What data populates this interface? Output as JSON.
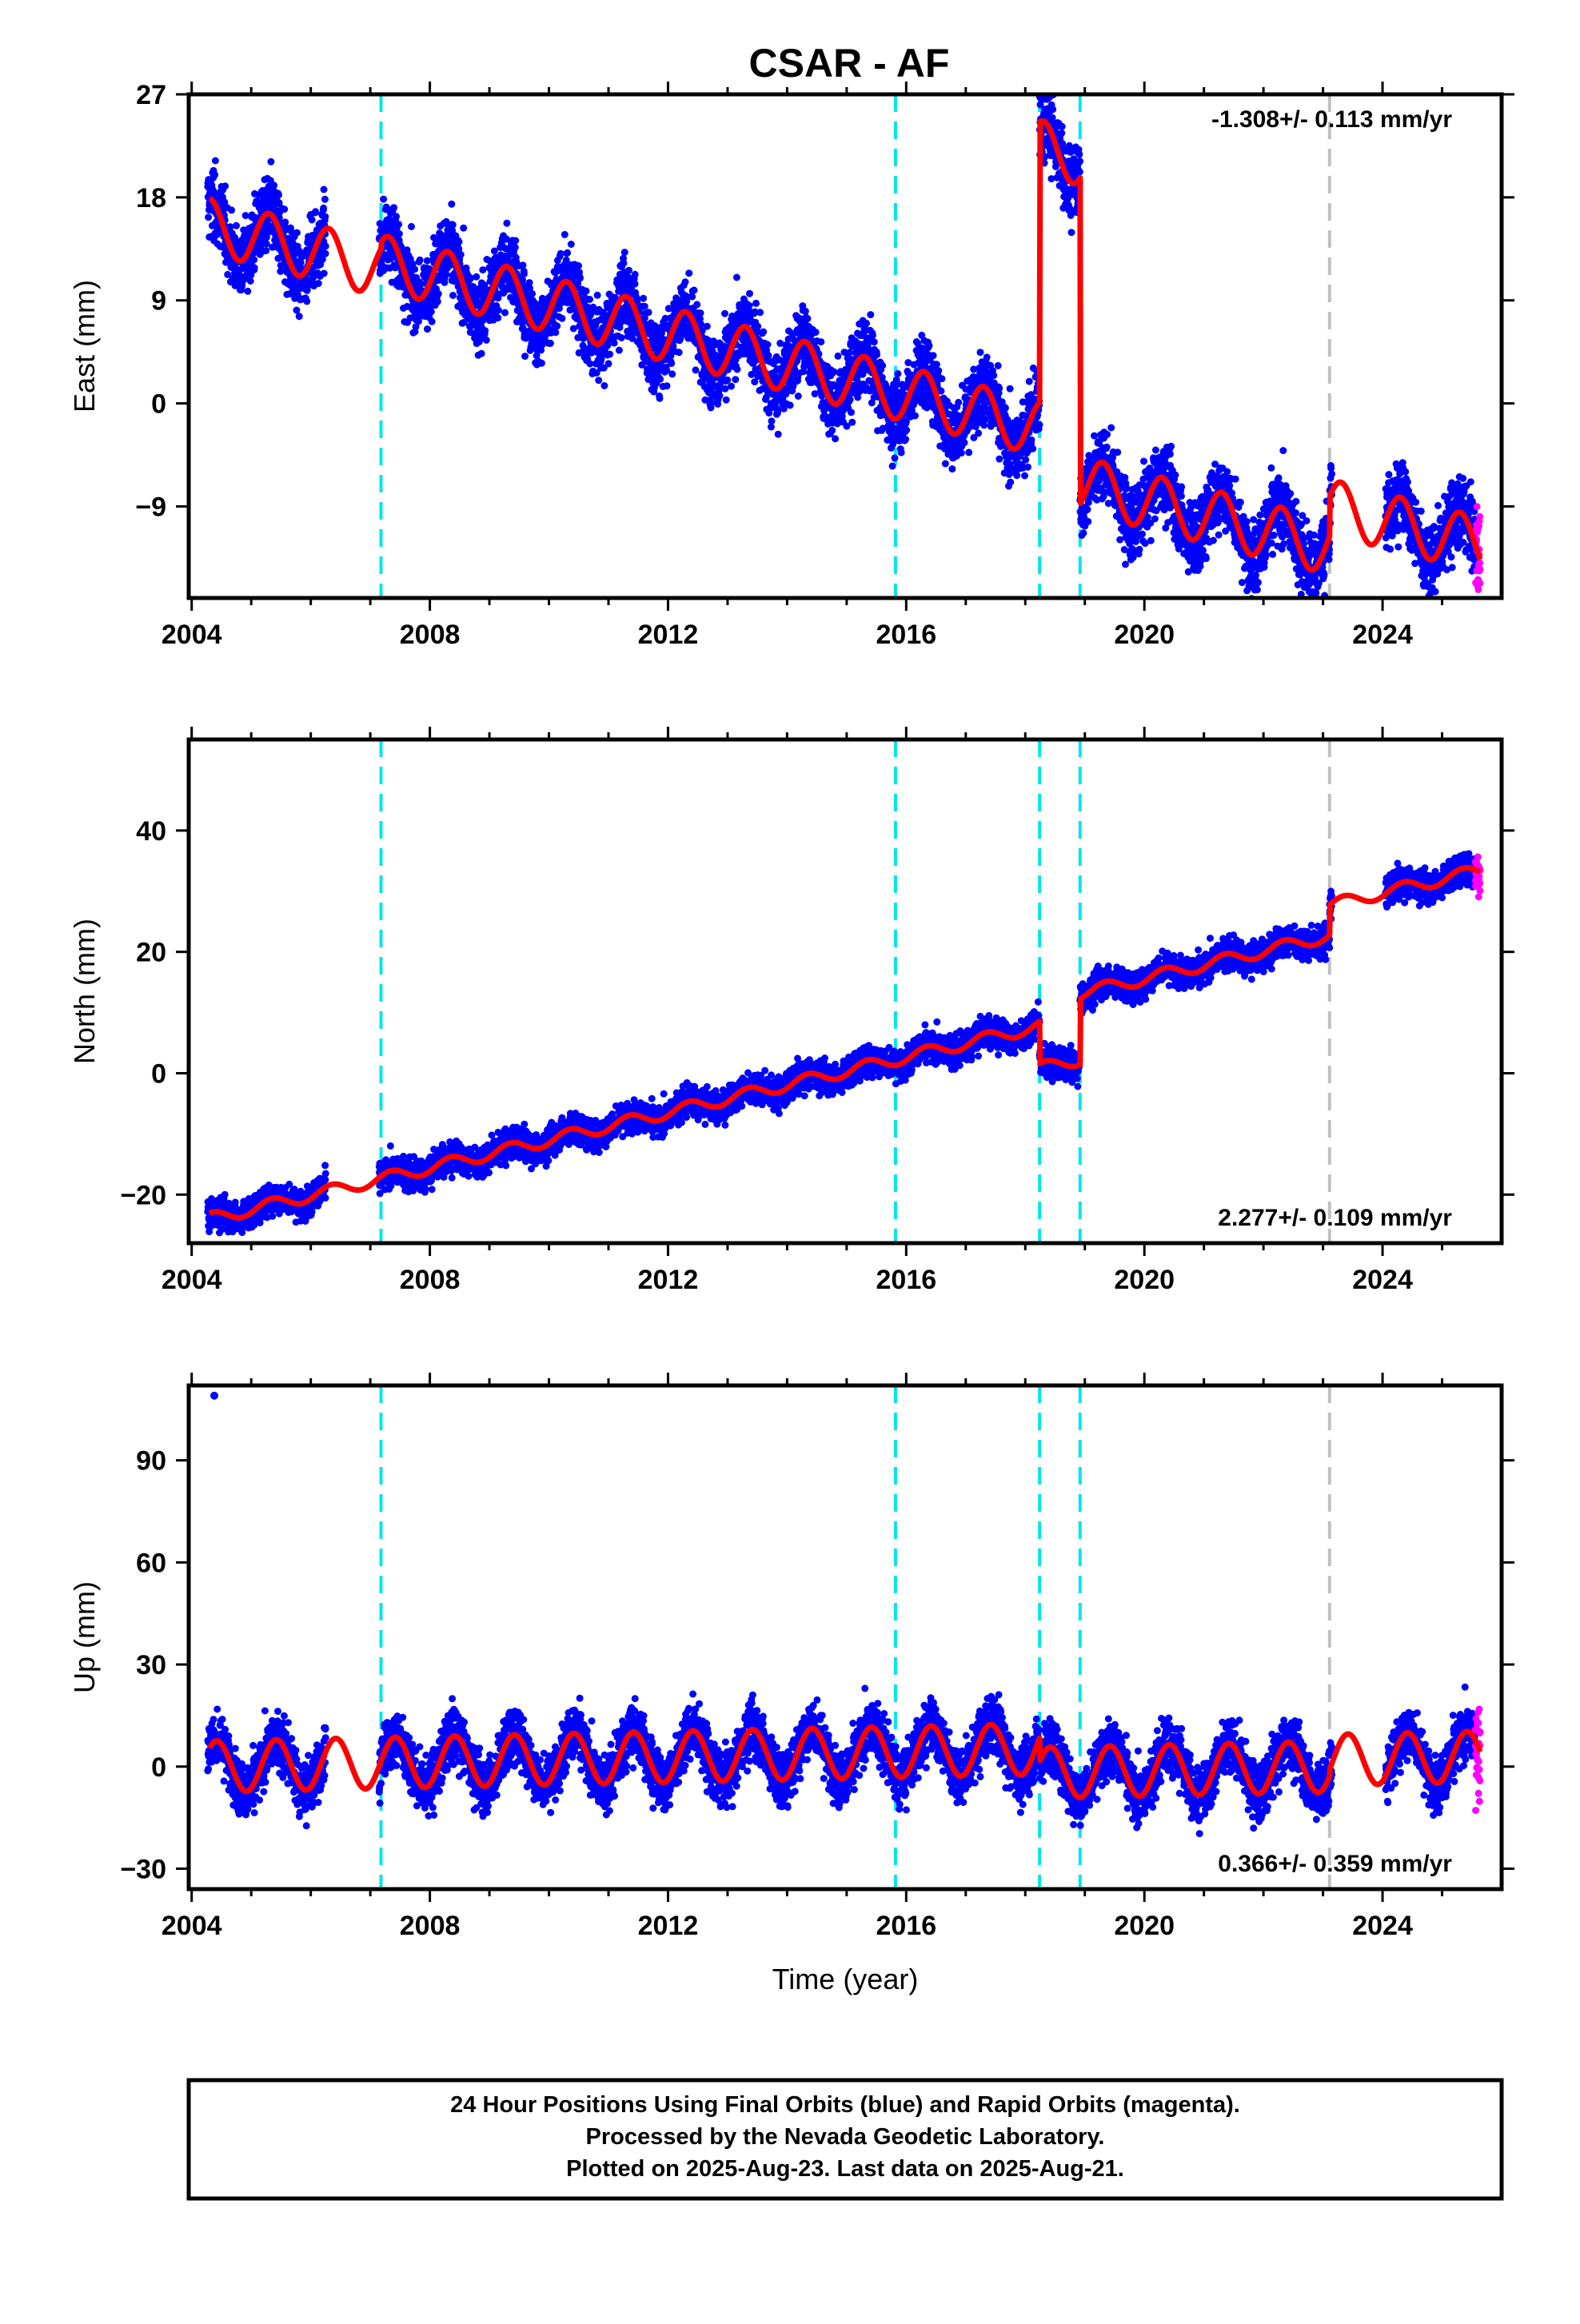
{
  "title": "CSAR - AF",
  "colors": {
    "final_orbits": "#0000ff",
    "rapid_orbits": "#ff00ff",
    "model": "#ff0000",
    "equipment_change": "#00e5ee",
    "earthquake": "#c0c0c0"
  },
  "chart_data": [
    {
      "type": "scatter",
      "name": "east",
      "ylabel": "East (mm)",
      "xlim": [
        2003.95,
        2026.0
      ],
      "ylim": [
        -17,
        27
      ],
      "yticks": [
        27,
        18,
        9,
        0,
        -9
      ],
      "xticks": [
        2004,
        2008,
        2012,
        2016,
        2020,
        2024
      ],
      "rate_label": "-1.308+/- 0.113 mm/yr",
      "rate_position": "top-right",
      "grid": false
    },
    {
      "type": "scatter",
      "name": "north",
      "ylabel": "North (mm)",
      "xlim": [
        2003.95,
        2026.0
      ],
      "ylim": [
        -28,
        55
      ],
      "yticks": [
        40,
        20,
        0,
        -20
      ],
      "xticks": [
        2004,
        2008,
        2012,
        2016,
        2020,
        2024
      ],
      "rate_label": "2.277+/- 0.109 mm/yr",
      "rate_position": "bottom-right",
      "grid": false
    },
    {
      "type": "scatter",
      "name": "up",
      "ylabel": "Up (mm)",
      "xlabel": "Time (year)",
      "xlim": [
        2003.95,
        2026.0
      ],
      "ylim": [
        -36,
        112
      ],
      "yticks": [
        90,
        60,
        30,
        0,
        -30
      ],
      "xticks": [
        2004,
        2008,
        2012,
        2016,
        2020,
        2024
      ],
      "rate_label": "0.366+/- 0.359 mm/yr",
      "rate_position": "bottom-right",
      "grid": false
    }
  ],
  "events": {
    "equipment_changes": [
      2007.18,
      2015.82,
      2018.24,
      2018.92
    ],
    "earthquakes": [
      2023.11
    ]
  },
  "footer": {
    "line1": "24 Hour Positions Using Final Orbits (blue) and Rapid Orbits (magenta).",
    "line2": "Processed by the Nevada Geodetic Laboratory.",
    "line3": "Plotted on 2025-Aug-23. Last data on 2025-Aug-21."
  }
}
